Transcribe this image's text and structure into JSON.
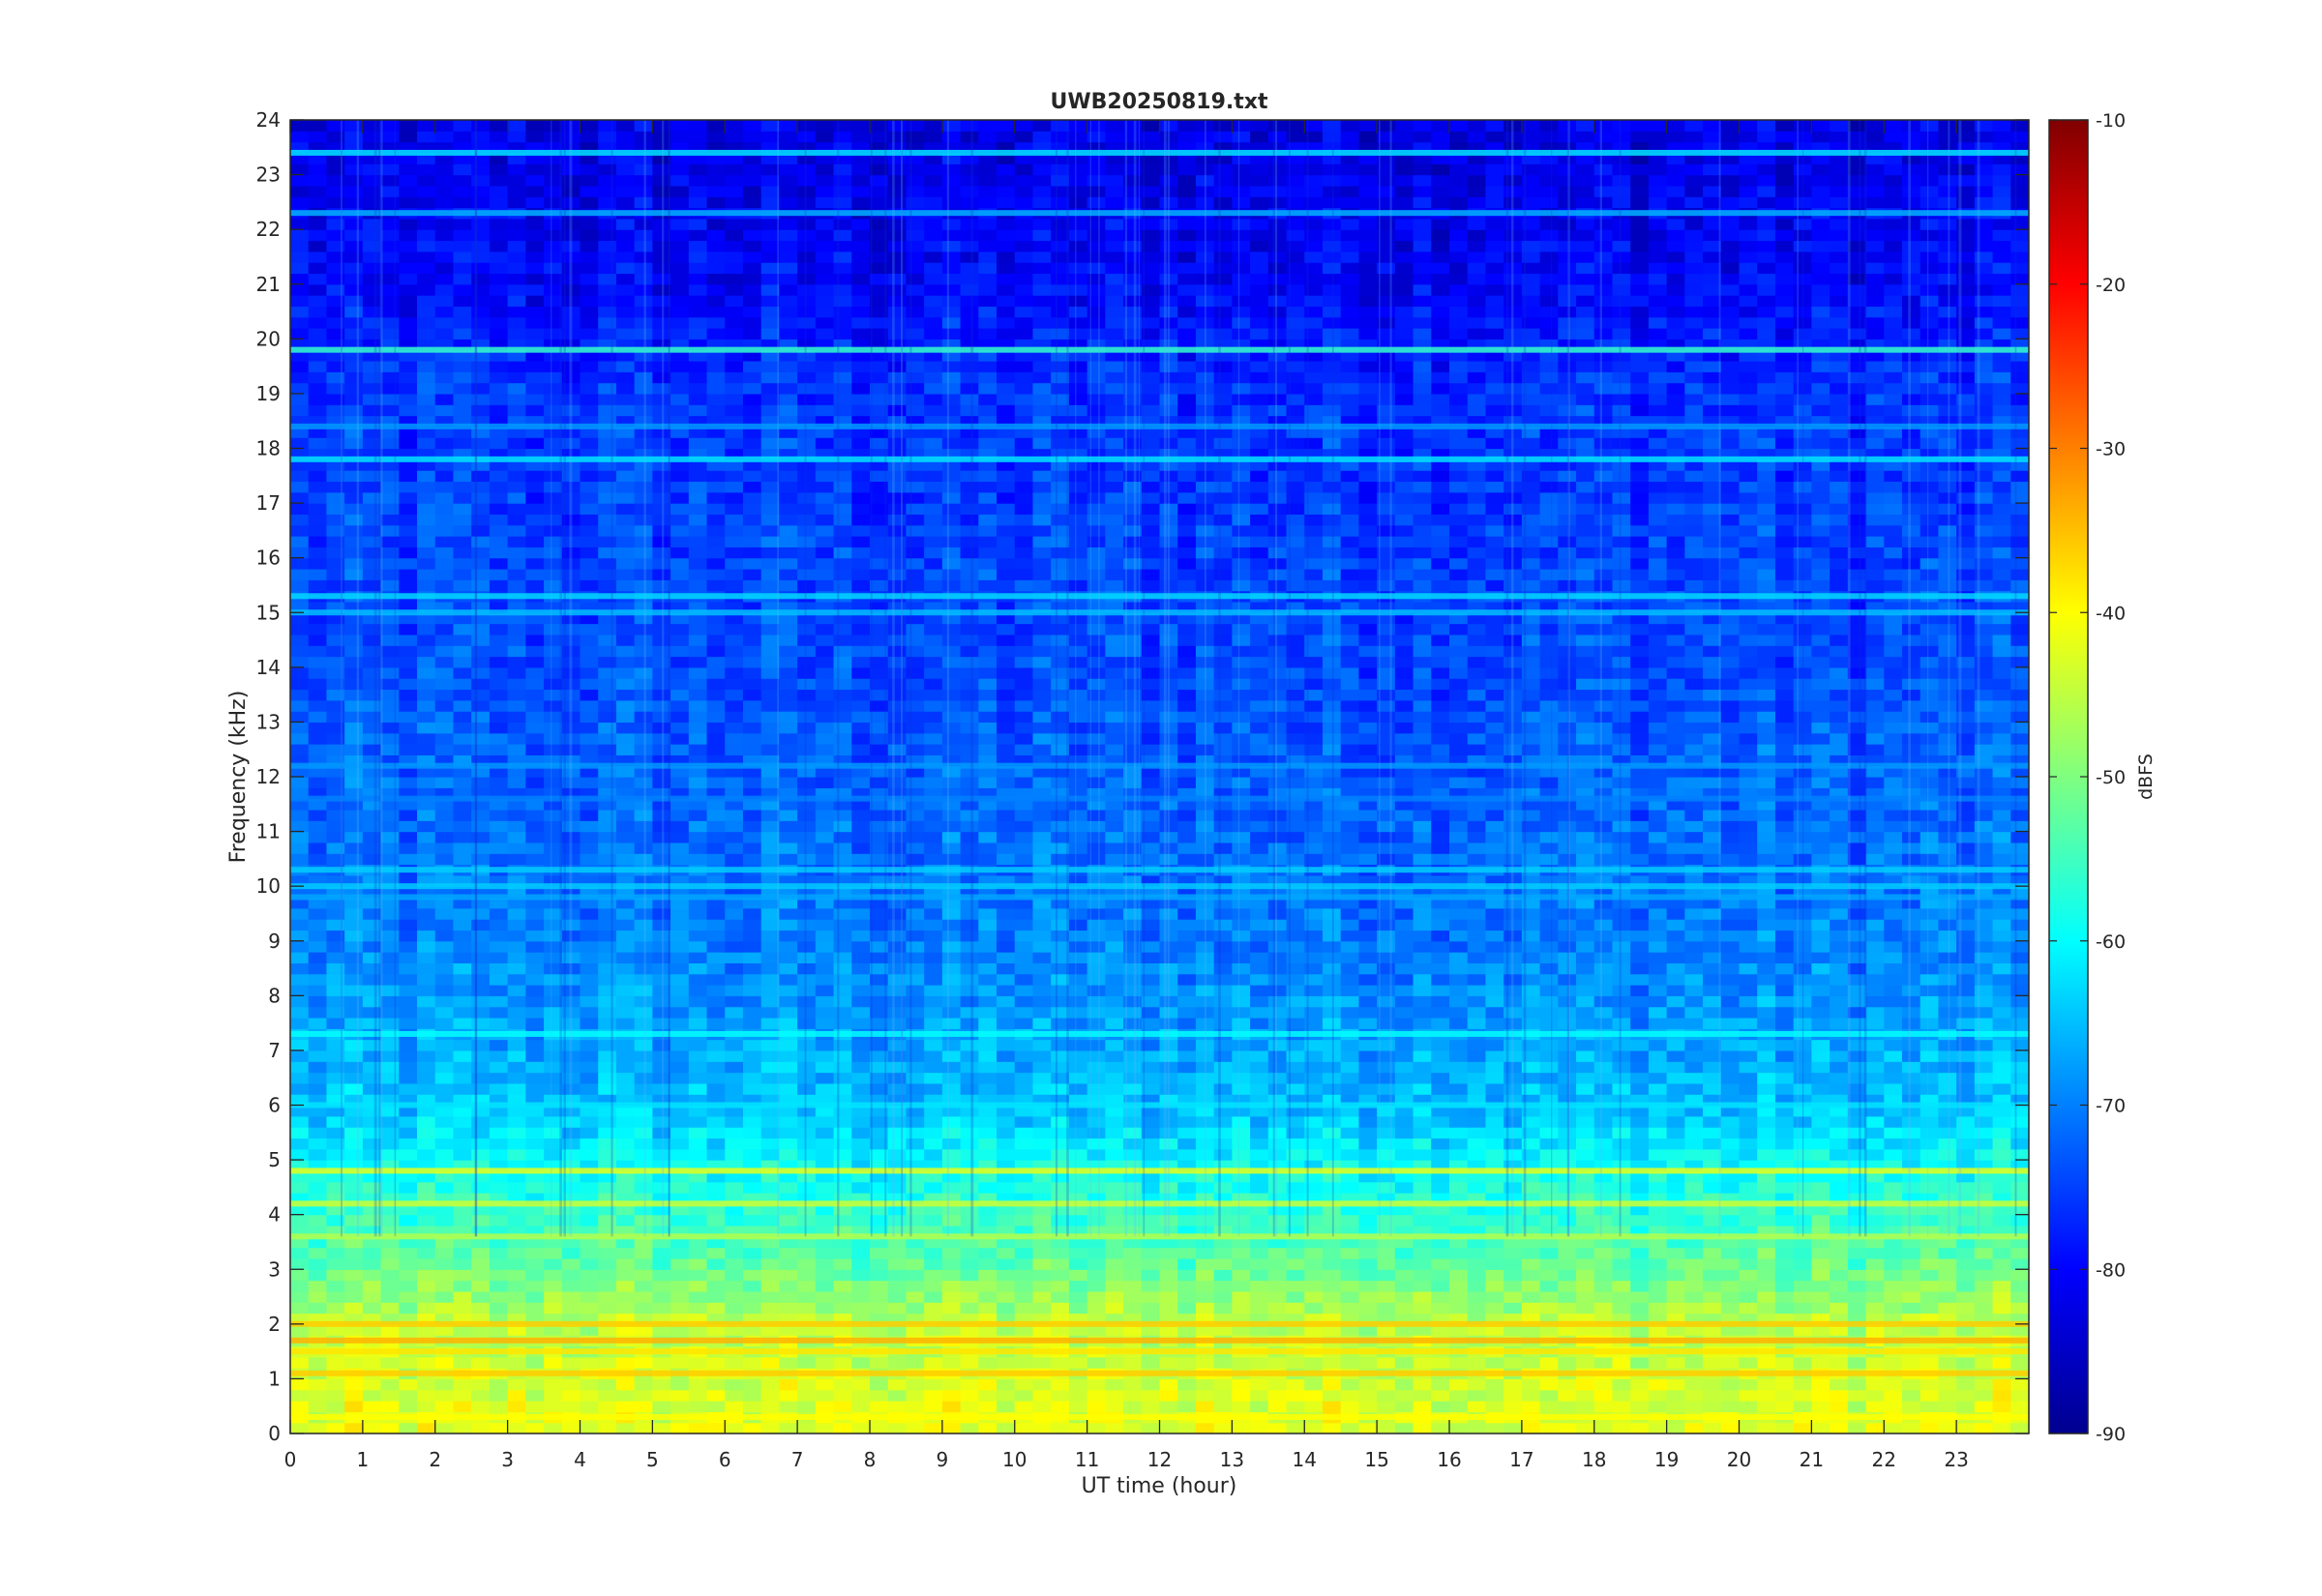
{
  "chart_data": {
    "type": "heatmap",
    "title": "UWB20250819.txt",
    "xlabel": "UT time (hour)",
    "ylabel": "Frequency (kHz)",
    "xlim": [
      0,
      24
    ],
    "ylim": [
      0,
      24
    ],
    "x_ticks": [
      "0",
      "1",
      "2",
      "3",
      "4",
      "5",
      "6",
      "7",
      "8",
      "9",
      "10",
      "11",
      "12",
      "13",
      "14",
      "15",
      "16",
      "17",
      "18",
      "19",
      "20",
      "21",
      "22",
      "23"
    ],
    "y_ticks": [
      "0",
      "1",
      "2",
      "3",
      "4",
      "5",
      "6",
      "7",
      "8",
      "9",
      "10",
      "11",
      "12",
      "13",
      "14",
      "15",
      "16",
      "17",
      "18",
      "19",
      "20",
      "21",
      "22",
      "23",
      "24"
    ],
    "colorbar": {
      "label": "dBFS",
      "range": [
        -90,
        -10
      ],
      "ticks": [
        "-10",
        "-20",
        "-30",
        "-40",
        "-50",
        "-60",
        "-70",
        "-80",
        "-90"
      ],
      "colormap": "jet"
    },
    "background_level_dbfs": [
      {
        "freq_khz": 0,
        "dbfs": -42
      },
      {
        "freq_khz": 2,
        "dbfs": -45
      },
      {
        "freq_khz": 3,
        "dbfs": -52
      },
      {
        "freq_khz": 4.5,
        "dbfs": -58
      },
      {
        "freq_khz": 6,
        "dbfs": -65
      },
      {
        "freq_khz": 9,
        "dbfs": -70
      },
      {
        "freq_khz": 14,
        "dbfs": -74
      },
      {
        "freq_khz": 19,
        "dbfs": -76
      },
      {
        "freq_khz": 21,
        "dbfs": -80
      },
      {
        "freq_khz": 24,
        "dbfs": -82
      }
    ],
    "bands": [
      {
        "freq_khz": 23.4,
        "dbfs": -62
      },
      {
        "freq_khz": 22.3,
        "dbfs": -66
      },
      {
        "freq_khz": 19.8,
        "dbfs": -56
      },
      {
        "freq_khz": 18.4,
        "dbfs": -68
      },
      {
        "freq_khz": 17.8,
        "dbfs": -62
      },
      {
        "freq_khz": 15.3,
        "dbfs": -63
      },
      {
        "freq_khz": 15.0,
        "dbfs": -65
      },
      {
        "freq_khz": 12.2,
        "dbfs": -68
      },
      {
        "freq_khz": 11.6,
        "dbfs": -70
      },
      {
        "freq_khz": 10.3,
        "dbfs": -64
      },
      {
        "freq_khz": 10.0,
        "dbfs": -64
      },
      {
        "freq_khz": 9.8,
        "dbfs": -67
      },
      {
        "freq_khz": 7.3,
        "dbfs": -60
      },
      {
        "freq_khz": 6.0,
        "dbfs": -62
      },
      {
        "freq_khz": 4.8,
        "dbfs": -42
      },
      {
        "freq_khz": 4.2,
        "dbfs": -44
      },
      {
        "freq_khz": 3.6,
        "dbfs": -46
      },
      {
        "freq_khz": 2.0,
        "dbfs": -36
      },
      {
        "freq_khz": 1.7,
        "dbfs": -34
      },
      {
        "freq_khz": 1.5,
        "dbfs": -38
      },
      {
        "freq_khz": 1.1,
        "dbfs": -36
      },
      {
        "freq_khz": 0.3,
        "dbfs": -40
      }
    ]
  }
}
